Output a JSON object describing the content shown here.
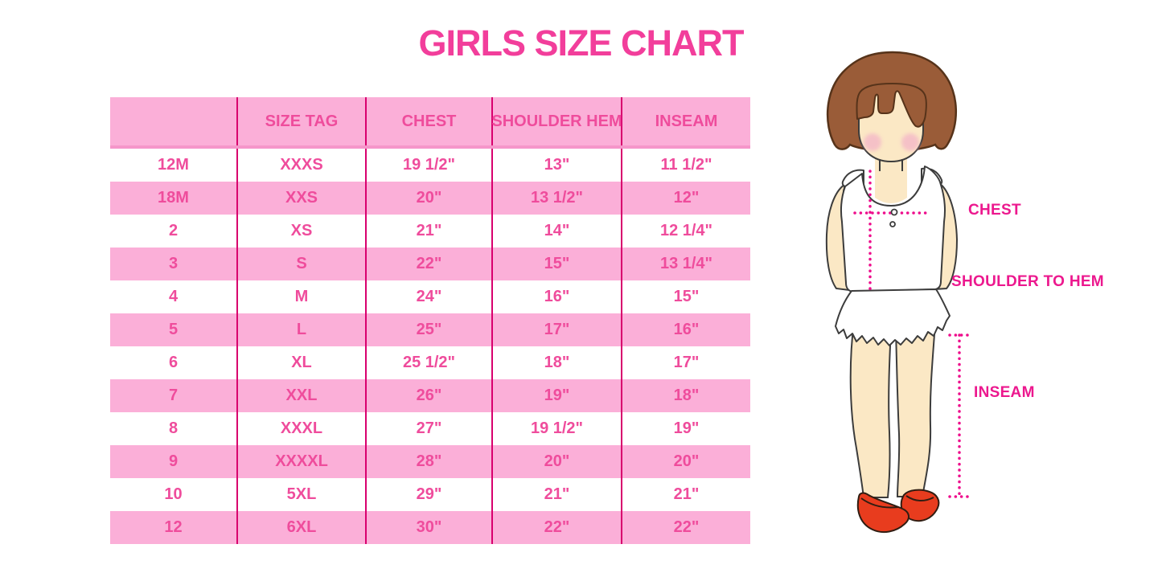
{
  "title": {
    "text": "GIRLS SIZE CHART",
    "color": "#F23E9B"
  },
  "table": {
    "columns": [
      "",
      "SIZE TAG",
      "CHEST",
      "SHOULDER HEM",
      "INSEAM"
    ],
    "rows": [
      [
        "12M",
        "XXXS",
        "19 1/2\"",
        "13\"",
        "11 1/2\""
      ],
      [
        "18M",
        "XXS",
        "20\"",
        "13 1/2\"",
        "12\""
      ],
      [
        "2",
        "XS",
        "21\"",
        "14\"",
        "12 1/4\""
      ],
      [
        "3",
        "S",
        "22\"",
        "15\"",
        "13 1/4\""
      ],
      [
        "4",
        "M",
        "24\"",
        "16\"",
        "15\""
      ],
      [
        "5",
        "L",
        "25\"",
        "17\"",
        "16\""
      ],
      [
        "6",
        "XL",
        "25 1/2\"",
        "18\"",
        "17\""
      ],
      [
        "7",
        "XXL",
        "26\"",
        "19\"",
        "18\""
      ],
      [
        "8",
        "XXXL",
        "27\"",
        "19 1/2\"",
        "19\""
      ],
      [
        "9",
        "XXXXL",
        "28\"",
        "20\"",
        "20\""
      ],
      [
        "10",
        "5XL",
        "29\"",
        "21\"",
        "21\""
      ],
      [
        "12",
        "6XL",
        "30\"",
        "22\"",
        "22\""
      ]
    ],
    "colors": {
      "stripe_pink": "#FBAFD8",
      "divider_line": "#D8006E",
      "cell_text": "#EF4C9C",
      "header_bottom_strip": "#F596CA"
    }
  },
  "diagram": {
    "labels": {
      "chest": "CHEST",
      "shoulder_to_hem": "SHOULDER TO HEM",
      "inseam": "INSEAM"
    },
    "colors": {
      "label_text": "#EC188E",
      "measure_dots": "#EE0D8C",
      "hair": "#9A5C38",
      "skin": "#FBE8C5",
      "shoes": "#E83C1E"
    }
  }
}
